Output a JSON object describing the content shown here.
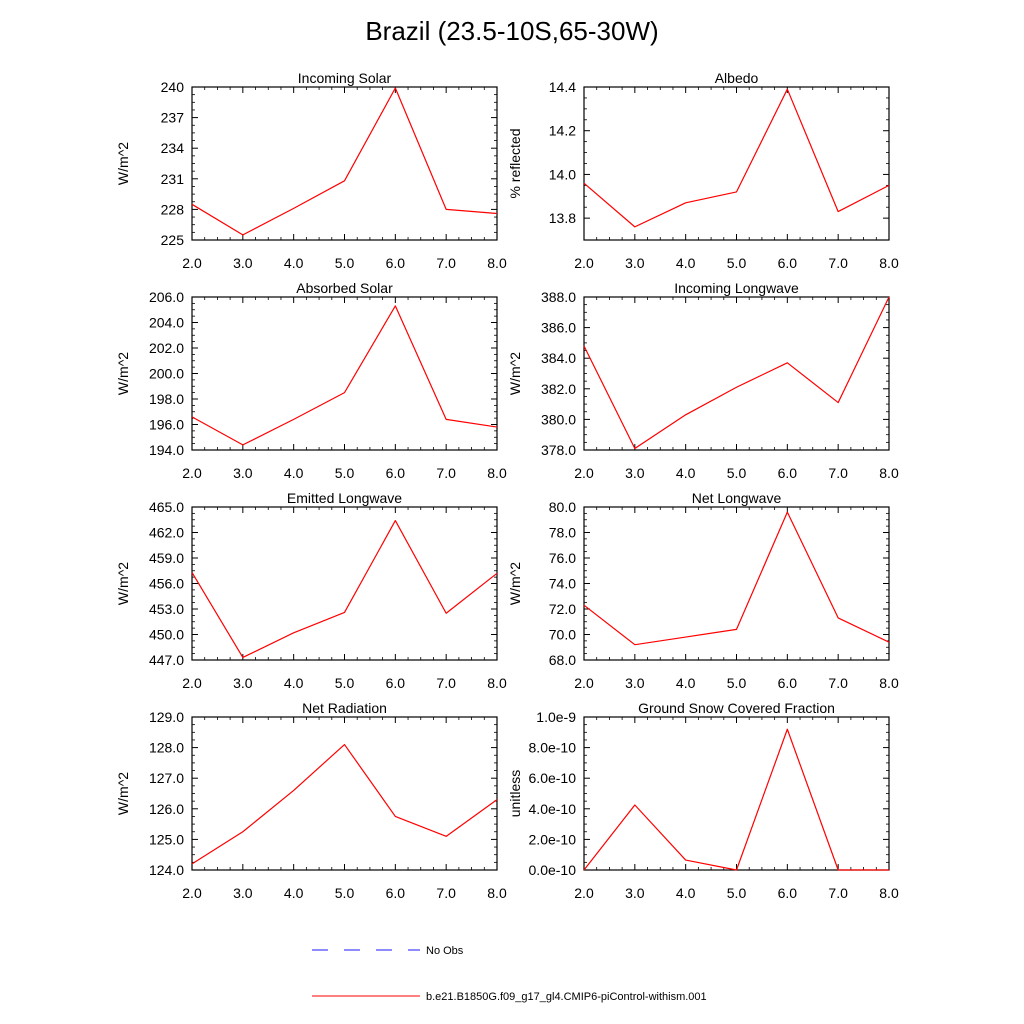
{
  "title": "Brazil (23.5-10S,65-30W)",
  "legend": {
    "placement": "bottom-center",
    "entries": [
      {
        "label": "No Obs",
        "color": "#1a1aff",
        "dash": true
      },
      {
        "label": "b.e21.B1850G.f09_g17_gl4.CMIP6-piControl-withism.001",
        "color": "#ff0000",
        "dash": false
      }
    ]
  },
  "chart_data": [
    {
      "type": "line",
      "title": "Incoming Solar",
      "ylabel": "W/m^2",
      "x": [
        2.0,
        3.0,
        4.0,
        5.0,
        6.0,
        7.0,
        8.0
      ],
      "xlim": [
        2.0,
        8.0
      ],
      "xticks": [
        "2.0",
        "3.0",
        "4.0",
        "5.0",
        "6.0",
        "7.0",
        "8.0"
      ],
      "ylim": [
        225,
        240
      ],
      "yticks": [
        {
          "v": 225,
          "label": "225"
        },
        {
          "v": 228,
          "label": "228"
        },
        {
          "v": 231,
          "label": "231"
        },
        {
          "v": 234,
          "label": "234"
        },
        {
          "v": 237,
          "label": "237"
        },
        {
          "v": 240,
          "label": "240"
        }
      ],
      "series": [
        {
          "color": "#ff0000",
          "values": [
            228.5,
            225.5,
            228.1,
            230.8,
            239.9,
            228.0,
            227.6
          ]
        }
      ]
    },
    {
      "type": "line",
      "title": "Albedo",
      "ylabel": "% reflected",
      "x": [
        2.0,
        3.0,
        4.0,
        5.0,
        6.0,
        7.0,
        8.0
      ],
      "xlim": [
        2.0,
        8.0
      ],
      "xticks": [
        "2.0",
        "3.0",
        "4.0",
        "5.0",
        "6.0",
        "7.0",
        "8.0"
      ],
      "ylim": [
        13.7,
        14.4
      ],
      "yticks": [
        {
          "v": 13.8,
          "label": "13.8"
        },
        {
          "v": 14.0,
          "label": "14.0"
        },
        {
          "v": 14.2,
          "label": "14.2"
        },
        {
          "v": 14.4,
          "label": "14.4"
        }
      ],
      "series": [
        {
          "color": "#ff0000",
          "values": [
            13.96,
            13.76,
            13.87,
            13.92,
            14.39,
            13.83,
            13.95
          ]
        }
      ]
    },
    {
      "type": "line",
      "title": "Absorbed Solar",
      "ylabel": "W/m^2",
      "x": [
        2.0,
        3.0,
        4.0,
        5.0,
        6.0,
        7.0,
        8.0
      ],
      "xlim": [
        2.0,
        8.0
      ],
      "xticks": [
        "2.0",
        "3.0",
        "4.0",
        "5.0",
        "6.0",
        "7.0",
        "8.0"
      ],
      "ylim": [
        194.0,
        206.0
      ],
      "yticks": [
        {
          "v": 194,
          "label": "194.0"
        },
        {
          "v": 196,
          "label": "196.0"
        },
        {
          "v": 198,
          "label": "198.0"
        },
        {
          "v": 200,
          "label": "200.0"
        },
        {
          "v": 202,
          "label": "202.0"
        },
        {
          "v": 204,
          "label": "204.0"
        },
        {
          "v": 206,
          "label": "206.0"
        }
      ],
      "series": [
        {
          "color": "#ff0000",
          "values": [
            196.6,
            194.4,
            196.4,
            198.5,
            205.3,
            196.4,
            195.8
          ]
        }
      ]
    },
    {
      "type": "line",
      "title": "Incoming Longwave",
      "ylabel": "W/m^2",
      "x": [
        2.0,
        3.0,
        4.0,
        5.0,
        6.0,
        7.0,
        8.0
      ],
      "xlim": [
        2.0,
        8.0
      ],
      "xticks": [
        "2.0",
        "3.0",
        "4.0",
        "5.0",
        "6.0",
        "7.0",
        "8.0"
      ],
      "ylim": [
        378.0,
        388.0
      ],
      "yticks": [
        {
          "v": 378,
          "label": "378.0"
        },
        {
          "v": 380,
          "label": "380.0"
        },
        {
          "v": 382,
          "label": "382.0"
        },
        {
          "v": 384,
          "label": "384.0"
        },
        {
          "v": 386,
          "label": "386.0"
        },
        {
          "v": 388,
          "label": "388.0"
        }
      ],
      "series": [
        {
          "color": "#ff0000",
          "values": [
            384.8,
            378.1,
            380.3,
            382.1,
            383.7,
            381.1,
            388.0
          ]
        }
      ]
    },
    {
      "type": "line",
      "title": "Emitted Longwave",
      "ylabel": "W/m^2",
      "x": [
        2.0,
        3.0,
        4.0,
        5.0,
        6.0,
        7.0,
        8.0
      ],
      "xlim": [
        2.0,
        8.0
      ],
      "xticks": [
        "2.0",
        "3.0",
        "4.0",
        "5.0",
        "6.0",
        "7.0",
        "8.0"
      ],
      "ylim": [
        447.0,
        465.0
      ],
      "yticks": [
        {
          "v": 447,
          "label": "447.0"
        },
        {
          "v": 450,
          "label": "450.0"
        },
        {
          "v": 453,
          "label": "453.0"
        },
        {
          "v": 456,
          "label": "456.0"
        },
        {
          "v": 459,
          "label": "459.0"
        },
        {
          "v": 462,
          "label": "462.0"
        },
        {
          "v": 465,
          "label": "465.0"
        }
      ],
      "series": [
        {
          "color": "#ff0000",
          "values": [
            457.3,
            447.3,
            450.2,
            452.6,
            463.4,
            452.5,
            457.2
          ]
        }
      ]
    },
    {
      "type": "line",
      "title": "Net Longwave",
      "ylabel": "W/m^2",
      "x": [
        2.0,
        3.0,
        4.0,
        5.0,
        6.0,
        7.0,
        8.0
      ],
      "xlim": [
        2.0,
        8.0
      ],
      "xticks": [
        "2.0",
        "3.0",
        "4.0",
        "5.0",
        "6.0",
        "7.0",
        "8.0"
      ],
      "ylim": [
        68.0,
        80.0
      ],
      "yticks": [
        {
          "v": 68,
          "label": "68.0"
        },
        {
          "v": 70,
          "label": "70.0"
        },
        {
          "v": 72,
          "label": "72.0"
        },
        {
          "v": 74,
          "label": "74.0"
        },
        {
          "v": 76,
          "label": "76.0"
        },
        {
          "v": 78,
          "label": "78.0"
        },
        {
          "v": 80,
          "label": "80.0"
        }
      ],
      "series": [
        {
          "color": "#ff0000",
          "values": [
            72.3,
            69.2,
            69.8,
            70.4,
            79.6,
            71.3,
            69.4
          ]
        }
      ]
    },
    {
      "type": "line",
      "title": "Net Radiation",
      "ylabel": "W/m^2",
      "x": [
        2.0,
        3.0,
        4.0,
        5.0,
        6.0,
        7.0,
        8.0
      ],
      "xlim": [
        2.0,
        8.0
      ],
      "xticks": [
        "2.0",
        "3.0",
        "4.0",
        "5.0",
        "6.0",
        "7.0",
        "8.0"
      ],
      "ylim": [
        124.0,
        129.0
      ],
      "yticks": [
        {
          "v": 124,
          "label": "124.0"
        },
        {
          "v": 125,
          "label": "125.0"
        },
        {
          "v": 126,
          "label": "126.0"
        },
        {
          "v": 127,
          "label": "127.0"
        },
        {
          "v": 128,
          "label": "128.0"
        },
        {
          "v": 129,
          "label": "129.0"
        }
      ],
      "series": [
        {
          "color": "#ff0000",
          "values": [
            124.2,
            125.25,
            126.6,
            128.1,
            125.75,
            125.1,
            126.3
          ]
        }
      ]
    },
    {
      "type": "line",
      "title": "Ground Snow Covered Fraction",
      "ylabel": "unitless",
      "x": [
        2.0,
        3.0,
        4.0,
        5.0,
        6.0,
        7.0,
        8.0
      ],
      "xlim": [
        2.0,
        8.0
      ],
      "xticks": [
        "2.0",
        "3.0",
        "4.0",
        "5.0",
        "6.0",
        "7.0",
        "8.0"
      ],
      "ylim": [
        0,
        1e-09
      ],
      "yticks": [
        {
          "v": 0,
          "label": "0.0e-10"
        },
        {
          "v": 2e-10,
          "label": "2.0e-10"
        },
        {
          "v": 4e-10,
          "label": "4.0e-10"
        },
        {
          "v": 6e-10,
          "label": "6.0e-10"
        },
        {
          "v": 8e-10,
          "label": "8.0e-10"
        },
        {
          "v": 1e-09,
          "label": "1.0e-9"
        }
      ],
      "series": [
        {
          "color": "#ff0000",
          "values": [
            0,
            4.25e-10,
            6.5e-11,
            0,
            9.2e-10,
            0,
            0
          ]
        }
      ]
    }
  ]
}
